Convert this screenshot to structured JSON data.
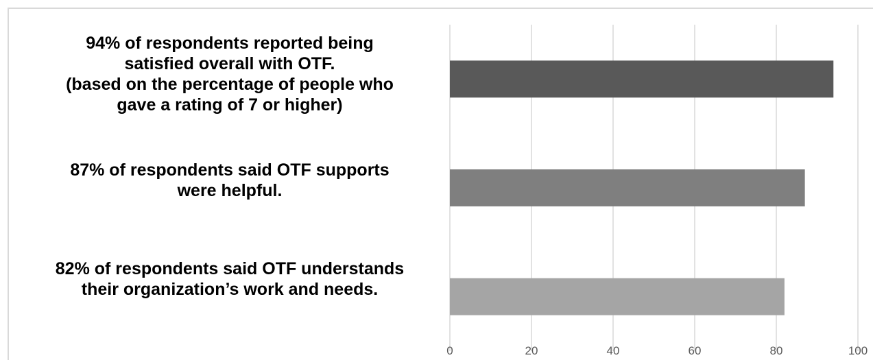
{
  "chart_data": {
    "type": "bar",
    "orientation": "horizontal",
    "categories": [
      "94% of respondents reported being\nsatisfied overall with OTF.\n(based on the percentage of people who\ngave a rating of 7 or higher)",
      "87% of respondents said OTF supports\nwere helpful.",
      "82% of respondents said OTF understands\ntheir organization’s work and needs."
    ],
    "values": [
      94,
      87,
      82
    ],
    "colors": [
      "#595959",
      "#7f7f7f",
      "#a5a5a5"
    ],
    "xlim": [
      0,
      100
    ],
    "xticks": [
      "0",
      "20",
      "40",
      "60",
      "80",
      "100"
    ],
    "grid": true,
    "title": "",
    "xlabel": "",
    "ylabel": ""
  }
}
